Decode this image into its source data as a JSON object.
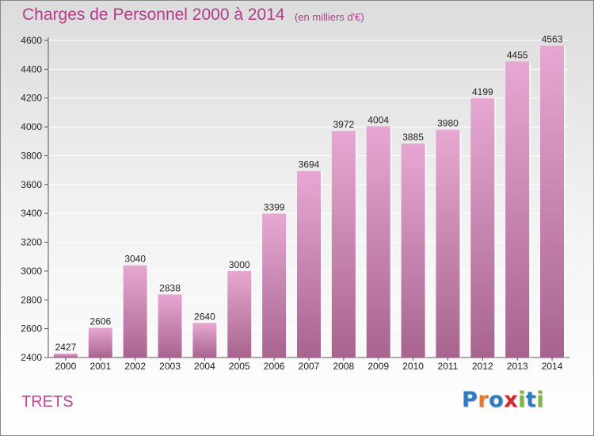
{
  "title": "Charges de Personnel 2000 à 2014",
  "subtitle": "(en milliers d'€)",
  "city": "TRETS",
  "logo": {
    "text": "Proxiti",
    "letter_colors": [
      "#2b7cc4",
      "#e8762b",
      "#2b7cc4",
      "#d6282e",
      "#7cb83e",
      "#2b7cc4",
      "#7cb83e"
    ]
  },
  "colors": {
    "bar_top": "#e6a8d2",
    "bar_bottom": "#a8648e",
    "text": "#222222",
    "accent": "#b03c8a"
  },
  "chart_data": {
    "type": "bar",
    "categories": [
      "2000",
      "2001",
      "2002",
      "2003",
      "2004",
      "2005",
      "2006",
      "2007",
      "2008",
      "2009",
      "2010",
      "2011",
      "2012",
      "2013",
      "2014"
    ],
    "values": [
      2427,
      2606,
      3040,
      2838,
      2640,
      3000,
      3399,
      3694,
      3972,
      4004,
      3885,
      3980,
      4199,
      4455,
      4563
    ],
    "ylim": [
      2400,
      4600
    ],
    "yticks": [
      2400,
      2600,
      2800,
      3000,
      3200,
      3400,
      3600,
      3800,
      4000,
      4200,
      4400,
      4600
    ],
    "grid": true,
    "data_labels": true
  }
}
